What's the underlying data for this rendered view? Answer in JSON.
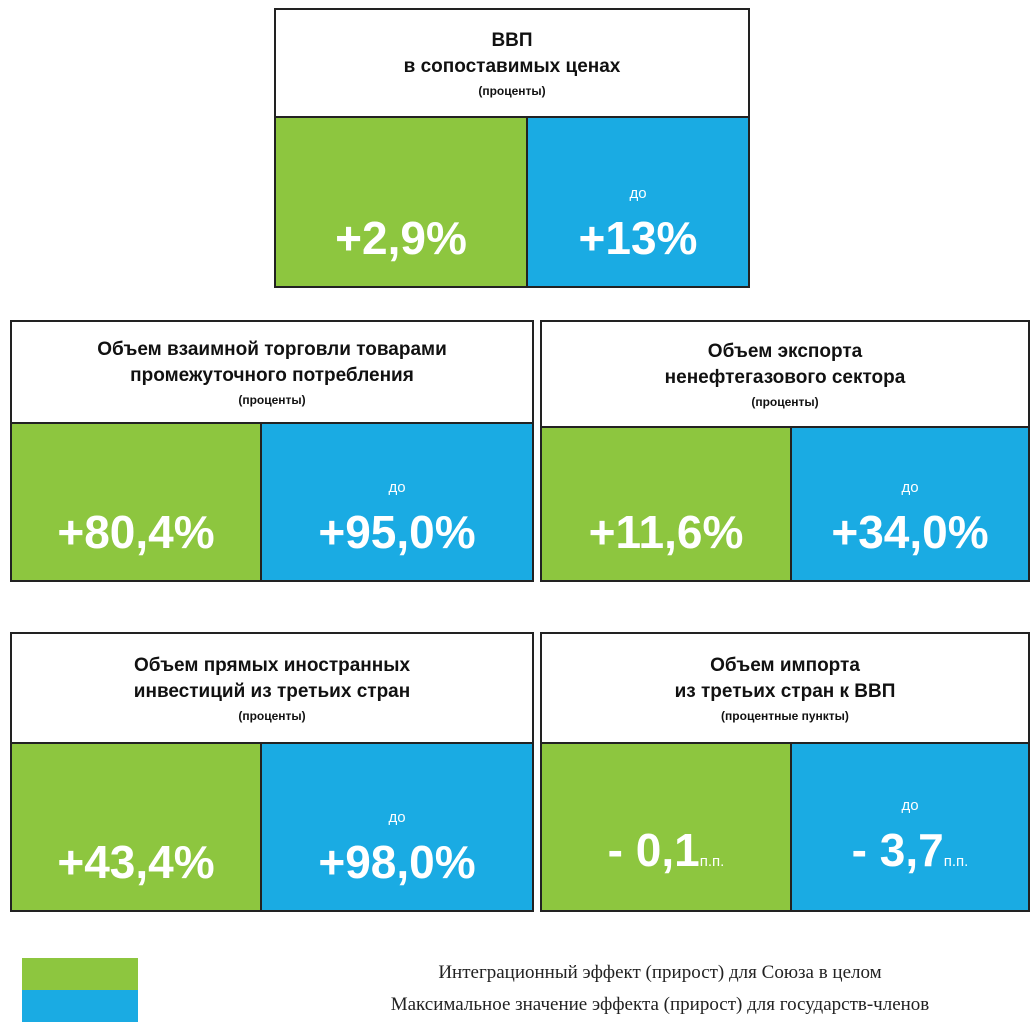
{
  "panels": [
    {
      "title": [
        "ВВП",
        "в сопоставимых ценах"
      ],
      "unit": "(проценты)",
      "union_value": "+2,9%",
      "max_prefix": "до",
      "max_value": "+13%"
    },
    {
      "title": [
        "Объем взаимной торговли товарами",
        "промежуточного потребления"
      ],
      "unit": "(проценты)",
      "union_value": "+80,4%",
      "max_prefix": "до",
      "max_value": "+95,0%"
    },
    {
      "title": [
        "Объем экспорта",
        "ненефтегазового сектора"
      ],
      "unit": "(проценты)",
      "union_value": "+11,6%",
      "max_prefix": "до",
      "max_value": "+34,0%"
    },
    {
      "title": [
        "Объем прямых иностранных",
        "инвестиций из третьих стран"
      ],
      "unit": "(проценты)",
      "union_value": "+43,4%",
      "max_prefix": "до",
      "max_value": "+98,0%"
    },
    {
      "title": [
        "Объем импорта",
        "из третьих стран к ВВП"
      ],
      "unit": "(процентные пункты)",
      "union_value": "- 0,1",
      "union_suffix": "п.п.",
      "max_prefix": "до",
      "max_value": "- 3,7",
      "max_suffix": "п.п."
    }
  ],
  "legend": [
    {
      "color": "#8dc63f",
      "label": "Интеграционный эффект (прирост) для Союза в целом"
    },
    {
      "color": "#1aabe3",
      "label": "Максимальное значение эффекта (прирост) для государств-членов"
    }
  ]
}
